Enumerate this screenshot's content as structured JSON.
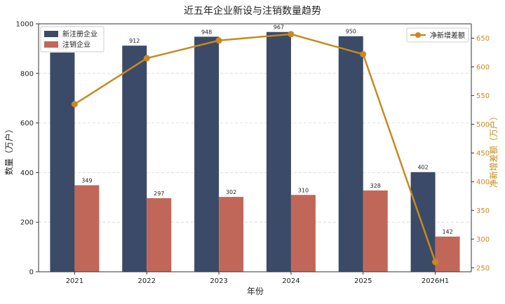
{
  "chart_data": {
    "type": "bar",
    "title": "近五年企业新设与注销数量趋势",
    "xlabel": "年份",
    "ylabel": "数量（万户）",
    "y2label": "净新增差额（万户）",
    "categories": [
      "2021",
      "2022",
      "2023",
      "2024",
      "2025",
      "2026H1"
    ],
    "series": [
      {
        "name": "新注册企业",
        "type": "bar",
        "axis": "left",
        "color": "#3b4a66",
        "values": [
          884,
          912,
          948,
          967,
          950,
          402
        ]
      },
      {
        "name": "注销企业",
        "type": "bar",
        "axis": "left",
        "color": "#c1675a",
        "values": [
          349,
          297,
          302,
          310,
          328,
          142
        ]
      },
      {
        "name": "净新增差额",
        "type": "line",
        "axis": "right",
        "color": "#c8891f",
        "values": [
          535,
          615,
          646,
          657,
          622,
          260
        ]
      }
    ],
    "ylim": [
      0,
      1000
    ],
    "yticks": [
      0,
      200,
      400,
      600,
      800,
      1000
    ],
    "y2lim": [
      243,
      675
    ],
    "y2ticks": [
      250,
      300,
      350,
      400,
      450,
      500,
      550,
      600,
      650
    ],
    "grid": true,
    "legend_left": "top-left",
    "legend_right": "top-right"
  }
}
